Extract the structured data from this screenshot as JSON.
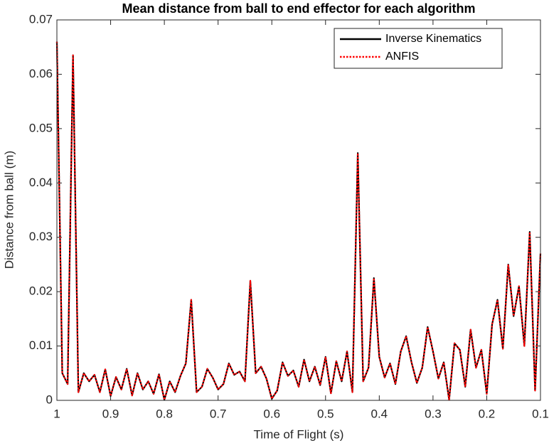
{
  "chart_data": {
    "type": "line",
    "title": "Mean distance from ball to end effector for each algorithm",
    "x_label": "Time of Flight (s)",
    "y_label": "Distance from ball (m)",
    "x": [
      1.0,
      0.99,
      0.98,
      0.97,
      0.96,
      0.95,
      0.94,
      0.93,
      0.92,
      0.91,
      0.9,
      0.89,
      0.88,
      0.87,
      0.86,
      0.85,
      0.84,
      0.83,
      0.82,
      0.81,
      0.8,
      0.79,
      0.78,
      0.77,
      0.76,
      0.75,
      0.74,
      0.73,
      0.72,
      0.71,
      0.7,
      0.69,
      0.68,
      0.67,
      0.66,
      0.65,
      0.64,
      0.63,
      0.62,
      0.61,
      0.6,
      0.59,
      0.58,
      0.57,
      0.56,
      0.55,
      0.54,
      0.53,
      0.52,
      0.51,
      0.5,
      0.49,
      0.48,
      0.47,
      0.46,
      0.45,
      0.44,
      0.43,
      0.42,
      0.41,
      0.4,
      0.39,
      0.38,
      0.37,
      0.36,
      0.35,
      0.34,
      0.33,
      0.32,
      0.31,
      0.3,
      0.29,
      0.28,
      0.27,
      0.26,
      0.25,
      0.24,
      0.23,
      0.22,
      0.21,
      0.2,
      0.19,
      0.18,
      0.17,
      0.16,
      0.15,
      0.14,
      0.13,
      0.12,
      0.11,
      0.1
    ],
    "series": [
      {
        "name": "Inverse Kinematics",
        "color": "#000000",
        "style": "solid",
        "values": [
          0.066,
          0.005,
          0.003,
          0.0635,
          0.0015,
          0.005,
          0.0035,
          0.0047,
          0.0015,
          0.0057,
          0.0008,
          0.0043,
          0.002,
          0.0058,
          0.0009,
          0.005,
          0.002,
          0.0035,
          0.0012,
          0.0048,
          0.0001,
          0.0035,
          0.0015,
          0.0045,
          0.0068,
          0.0185,
          0.0015,
          0.0025,
          0.0058,
          0.0042,
          0.002,
          0.003,
          0.0068,
          0.0047,
          0.0053,
          0.0035,
          0.022,
          0.005,
          0.0062,
          0.004,
          0.0003,
          0.0018,
          0.007,
          0.0045,
          0.0055,
          0.0025,
          0.0075,
          0.0035,
          0.0062,
          0.0028,
          0.008,
          0.0013,
          0.0072,
          0.0035,
          0.009,
          0.0015,
          0.0455,
          0.0035,
          0.006,
          0.0225,
          0.008,
          0.0042,
          0.0068,
          0.003,
          0.009,
          0.0118,
          0.007,
          0.0032,
          0.006,
          0.0135,
          0.009,
          0.004,
          0.007,
          0.0001,
          0.0105,
          0.0093,
          0.0025,
          0.013,
          0.006,
          0.0093,
          0.0012,
          0.014,
          0.0185,
          0.0095,
          0.025,
          0.0155,
          0.021,
          0.01,
          0.031,
          0.0018,
          0.027
        ]
      },
      {
        "name": "ANFIS",
        "color": "#ff0000",
        "style": "dotted",
        "values": [
          0.066,
          0.005,
          0.003,
          0.0635,
          0.0015,
          0.005,
          0.0035,
          0.0047,
          0.0015,
          0.0057,
          0.0008,
          0.0043,
          0.002,
          0.0058,
          0.0009,
          0.005,
          0.002,
          0.0035,
          0.0012,
          0.0048,
          0.0001,
          0.0035,
          0.0015,
          0.0045,
          0.0068,
          0.0185,
          0.0015,
          0.0025,
          0.0058,
          0.0042,
          0.002,
          0.003,
          0.0068,
          0.0047,
          0.0053,
          0.0035,
          0.022,
          0.005,
          0.0062,
          0.004,
          0.0003,
          0.0018,
          0.007,
          0.0045,
          0.0055,
          0.0025,
          0.0075,
          0.0035,
          0.0062,
          0.0028,
          0.008,
          0.0013,
          0.0072,
          0.0035,
          0.009,
          0.0015,
          0.0455,
          0.0035,
          0.006,
          0.0225,
          0.008,
          0.0042,
          0.0068,
          0.003,
          0.009,
          0.0118,
          0.007,
          0.0032,
          0.006,
          0.0135,
          0.009,
          0.004,
          0.007,
          0.0001,
          0.0105,
          0.0093,
          0.0025,
          0.013,
          0.006,
          0.0093,
          0.0012,
          0.014,
          0.0185,
          0.0095,
          0.025,
          0.0155,
          0.021,
          0.01,
          0.031,
          0.0018,
          0.027
        ]
      }
    ],
    "xlim": [
      1,
      0.1
    ],
    "xticks": [
      1,
      0.9,
      0.8,
      0.7,
      0.6,
      0.5,
      0.4,
      0.3,
      0.2,
      0.1
    ],
    "ylim": [
      0,
      0.07
    ],
    "yticks": [
      0,
      0.01,
      0.02,
      0.03,
      0.04,
      0.05,
      0.06,
      0.07
    ],
    "grid": false,
    "legend": "northeast"
  }
}
